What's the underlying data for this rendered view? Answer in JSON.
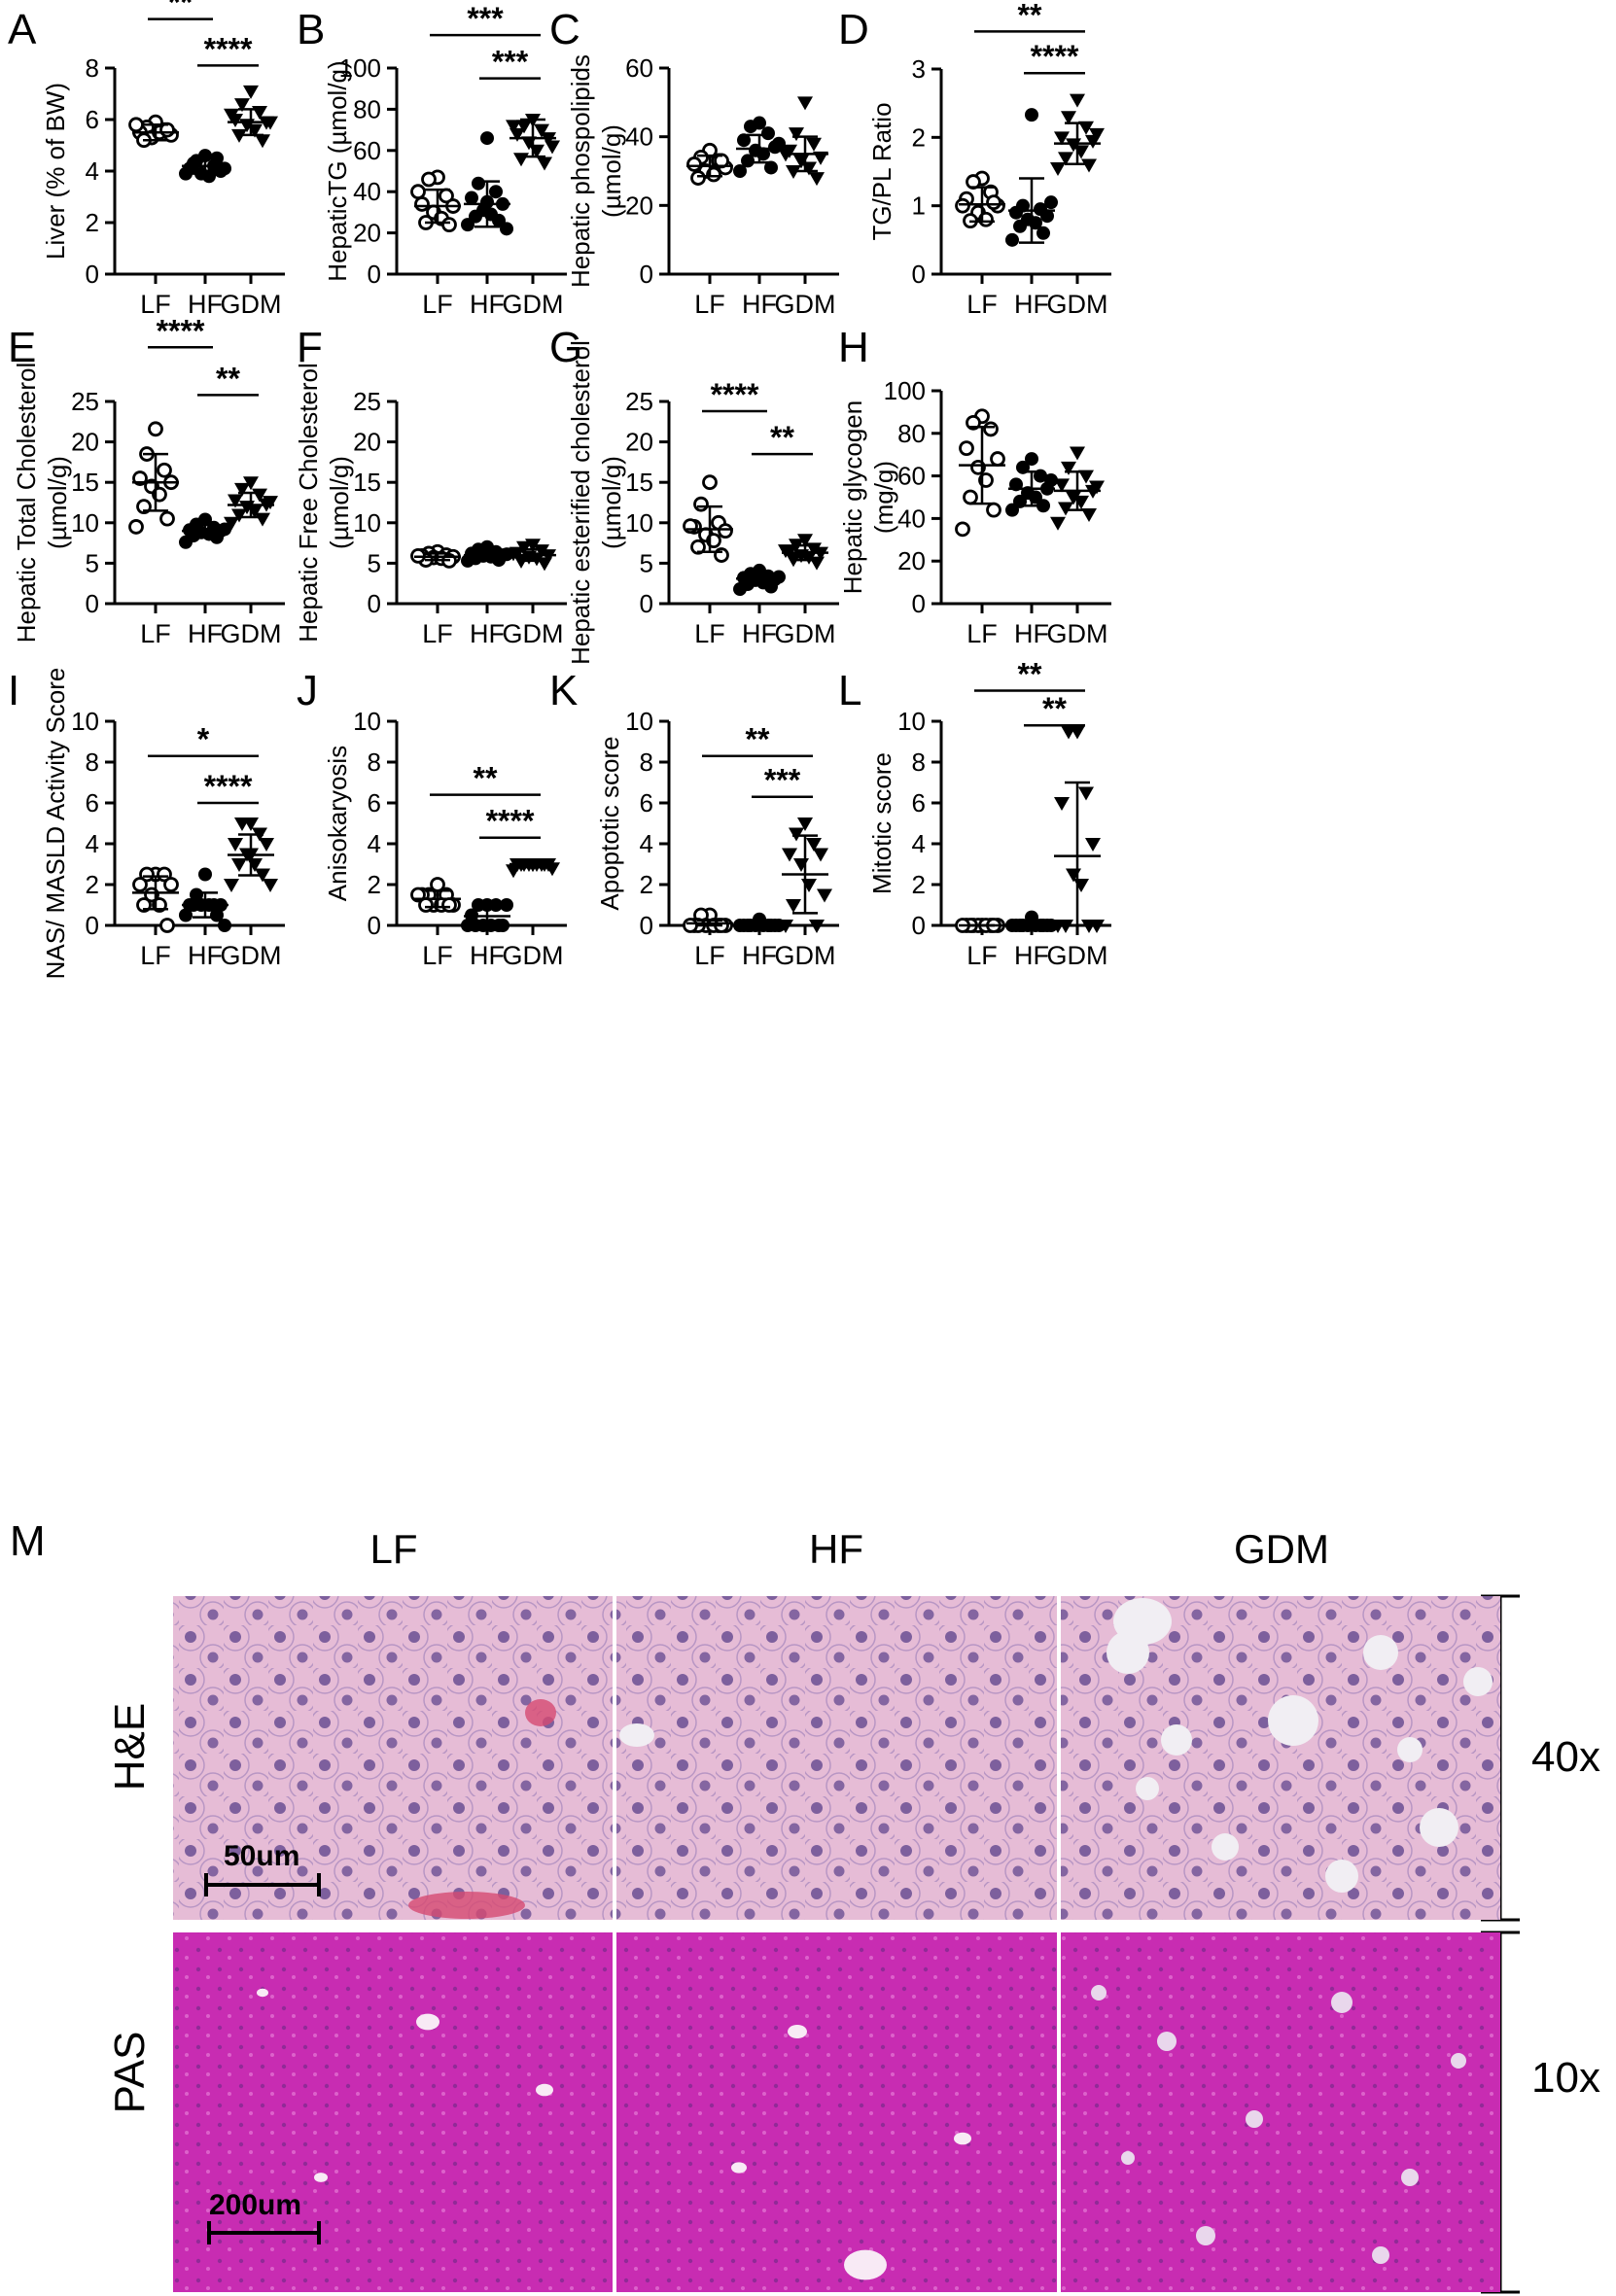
{
  "chart_data": [
    {
      "panel": "A",
      "type": "scatter",
      "ylabel": "Liver (% of BW)",
      "ylim": [
        0,
        8
      ],
      "yticks": [
        0,
        2,
        4,
        6,
        8
      ],
      "categories": [
        "LF",
        "HF",
        "GDM"
      ],
      "series": [
        {
          "group": "LF",
          "marker": "open-circle",
          "mean": 5.5,
          "sd": 0.3,
          "points": [
            5.9,
            5.7,
            5.6,
            5.5,
            5.4,
            5.3,
            5.5,
            5.2,
            5.6,
            5.8
          ]
        },
        {
          "group": "HF",
          "marker": "filled-circle",
          "mean": 4.2,
          "sd": 0.3,
          "points": [
            4.6,
            4.4,
            4.2,
            4.1,
            4.0,
            3.9,
            3.8,
            4.3,
            4.5,
            3.9,
            4.1
          ]
        },
        {
          "group": "GDM",
          "marker": "filled-triangle",
          "mean": 5.9,
          "sd": 0.5,
          "points": [
            7.1,
            6.6,
            6.3,
            6.0,
            5.9,
            5.8,
            5.6,
            5.4,
            5.2,
            6.2,
            5.9
          ]
        }
      ],
      "significance": [
        {
          "groups": [
            "LF",
            "HF"
          ],
          "label": "**",
          "y": 9.9
        },
        {
          "groups": [
            "HF",
            "GDM"
          ],
          "label": "****",
          "y": 8.1
        }
      ]
    },
    {
      "panel": "B",
      "type": "scatter",
      "ylabel": "HepaticTG (µmol/g)",
      "ylim": [
        0,
        100
      ],
      "yticks": [
        0,
        20,
        40,
        60,
        80,
        100
      ],
      "categories": [
        "LF",
        "HF",
        "GDM"
      ],
      "series": [
        {
          "group": "LF",
          "marker": "open-circle",
          "mean": 33,
          "sd": 8,
          "points": [
            47,
            46,
            38,
            34,
            33,
            30,
            27,
            25,
            24,
            40
          ]
        },
        {
          "group": "HF",
          "marker": "filled-circle",
          "mean": 34,
          "sd": 11,
          "points": [
            66,
            44,
            40,
            37,
            34,
            31,
            29,
            28,
            26,
            24,
            22,
            35
          ]
        },
        {
          "group": "GDM",
          "marker": "filled-triangle",
          "mean": 66,
          "sd": 9,
          "points": [
            75,
            72,
            70,
            68,
            66,
            64,
            60,
            56,
            54,
            72,
            62
          ]
        }
      ],
      "significance": [
        {
          "groups": [
            "LF",
            "GDM"
          ],
          "label": "***",
          "y": 116
        },
        {
          "groups": [
            "HF",
            "GDM"
          ],
          "label": "***",
          "y": 95
        }
      ]
    },
    {
      "panel": "C",
      "type": "scatter",
      "ylabel": "Hepatic phospolipids\n(µmol/g)",
      "ylim": [
        0,
        60
      ],
      "yticks": [
        0,
        20,
        40,
        60
      ],
      "categories": [
        "LF",
        "HF",
        "GDM"
      ],
      "series": [
        {
          "group": "LF",
          "marker": "open-circle",
          "mean": 31.5,
          "sd": 3,
          "points": [
            36,
            34,
            33,
            32,
            31,
            30,
            29,
            28,
            33
          ]
        },
        {
          "group": "HF",
          "marker": "filled-circle",
          "mean": 36.5,
          "sd": 4,
          "points": [
            44,
            43,
            41,
            39,
            37,
            36,
            35,
            33,
            31,
            30,
            38
          ]
        },
        {
          "group": "GDM",
          "marker": "filled-triangle",
          "mean": 35,
          "sd": 5,
          "points": [
            50,
            41,
            38,
            36,
            34,
            33,
            31,
            30,
            28,
            35
          ]
        }
      ],
      "significance": []
    },
    {
      "panel": "D",
      "type": "scatter",
      "ylabel": "TG/PL Ratio",
      "ylim": [
        0,
        3
      ],
      "yticks": [
        0,
        1,
        2,
        3
      ],
      "categories": [
        "LF",
        "HF",
        "GDM"
      ],
      "series": [
        {
          "group": "LF",
          "marker": "open-circle",
          "mean": 1.02,
          "sd": 0.25,
          "points": [
            1.4,
            1.35,
            1.2,
            1.1,
            1.0,
            0.9,
            0.8,
            0.78,
            1.05,
            1.0
          ]
        },
        {
          "group": "HF",
          "marker": "filled-circle",
          "mean": 0.93,
          "sd": 0.47,
          "points": [
            2.33,
            1.0,
            0.95,
            0.9,
            0.85,
            0.8,
            0.75,
            0.7,
            0.6,
            0.5,
            1.05
          ]
        },
        {
          "group": "GDM",
          "marker": "filled-triangle",
          "mean": 1.91,
          "sd": 0.3,
          "points": [
            2.55,
            2.3,
            2.15,
            2.0,
            1.95,
            1.9,
            1.8,
            1.7,
            1.6,
            1.55,
            2.05
          ]
        }
      ],
      "significance": [
        {
          "groups": [
            "LF",
            "GDM"
          ],
          "label": "**",
          "y": 3.55
        },
        {
          "groups": [
            "HF",
            "GDM"
          ],
          "label": "****",
          "y": 2.94
        }
      ]
    },
    {
      "panel": "E",
      "type": "scatter",
      "ylabel": "Hepatic Total Cholesterol\n(µmol/g)",
      "ylim": [
        0,
        25
      ],
      "yticks": [
        0,
        5,
        10,
        15,
        20,
        25
      ],
      "categories": [
        "LF",
        "HF",
        "GDM"
      ],
      "series": [
        {
          "group": "LF",
          "marker": "open-circle",
          "mean": 15,
          "sd": 3.5,
          "points": [
            21.6,
            18.5,
            16.5,
            15.5,
            15,
            14.5,
            13.5,
            12,
            10.5,
            9.5
          ]
        },
        {
          "group": "HF",
          "marker": "filled-circle",
          "mean": 9,
          "sd": 0.8,
          "points": [
            10.4,
            9.8,
            9.4,
            9.1,
            9,
            8.8,
            8.6,
            8.4,
            8.2,
            7.6,
            9.2
          ]
        },
        {
          "group": "GDM",
          "marker": "filled-triangle",
          "mean": 12.2,
          "sd": 1.5,
          "points": [
            15,
            14.2,
            13.5,
            12.8,
            12.3,
            12,
            11.5,
            11,
            10.5,
            10,
            12.6
          ]
        }
      ],
      "significance": [
        {
          "groups": [
            "LF",
            "HF"
          ],
          "label": "****",
          "y": 31.7
        },
        {
          "groups": [
            "HF",
            "GDM"
          ],
          "label": "**",
          "y": 25.8
        }
      ]
    },
    {
      "panel": "F",
      "type": "scatter",
      "ylabel": "Hepatic Free Cholesterol\n(µmol/g)",
      "ylim": [
        0,
        25
      ],
      "yticks": [
        0,
        5,
        10,
        15,
        20,
        25
      ],
      "categories": [
        "LF",
        "HF",
        "GDM"
      ],
      "series": [
        {
          "group": "LF",
          "marker": "open-circle",
          "mean": 5.8,
          "sd": 0.4,
          "points": [
            6.4,
            6.2,
            6,
            5.9,
            5.8,
            5.7,
            5.6,
            5.4,
            5.3,
            5.9
          ]
        },
        {
          "group": "HF",
          "marker": "filled-circle",
          "mean": 6,
          "sd": 0.5,
          "points": [
            7,
            6.7,
            6.4,
            6.2,
            6,
            5.9,
            5.8,
            5.6,
            5.4,
            5.3,
            6.1
          ]
        },
        {
          "group": "GDM",
          "marker": "filled-triangle",
          "mean": 6,
          "sd": 0.7,
          "points": [
            7.3,
            7,
            6.6,
            6.3,
            6,
            5.8,
            5.6,
            5.3,
            5,
            6.2
          ]
        }
      ],
      "significance": []
    },
    {
      "panel": "G",
      "type": "scatter",
      "ylabel": "Hepatic esterified cholesterol\n(µmol/g)",
      "ylim": [
        0,
        25
      ],
      "yticks": [
        0,
        5,
        10,
        15,
        20,
        25
      ],
      "categories": [
        "LF",
        "HF",
        "GDM"
      ],
      "series": [
        {
          "group": "LF",
          "marker": "open-circle",
          "mean": 9.2,
          "sd": 2.8,
          "points": [
            15,
            12.3,
            10,
            9.5,
            9,
            8.5,
            7.8,
            7,
            6,
            9.6
          ]
        },
        {
          "group": "HF",
          "marker": "filled-circle",
          "mean": 3.1,
          "sd": 0.8,
          "points": [
            4.1,
            3.7,
            3.4,
            3.2,
            3,
            2.9,
            2.6,
            2.4,
            2.1,
            1.8,
            3.3
          ]
        },
        {
          "group": "GDM",
          "marker": "filled-triangle",
          "mean": 6.3,
          "sd": 0.9,
          "points": [
            7.9,
            7.3,
            6.8,
            6.5,
            6.3,
            6,
            5.8,
            5.5,
            5.1,
            6.6
          ]
        }
      ],
      "significance": [
        {
          "groups": [
            "LF",
            "HF"
          ],
          "label": "****",
          "y": 23.8
        },
        {
          "groups": [
            "HF",
            "GDM"
          ],
          "label": "**",
          "y": 18.5
        }
      ]
    },
    {
      "panel": "H",
      "type": "scatter",
      "ylabel": "Hepatic glycogen\n(mg/g)",
      "ylim": [
        0,
        100
      ],
      "yticks": [
        0,
        20,
        40,
        60,
        80,
        100
      ],
      "categories": [
        "LF",
        "HF",
        "GDM"
      ],
      "series": [
        {
          "group": "LF",
          "marker": "open-circle",
          "mean": 65,
          "sd": 18,
          "points": [
            88,
            85,
            82,
            73,
            68,
            64,
            58,
            50,
            44,
            35
          ]
        },
        {
          "group": "HF",
          "marker": "filled-circle",
          "mean": 54,
          "sd": 8,
          "points": [
            68,
            64,
            60,
            56,
            54,
            52,
            50,
            48,
            46,
            44,
            58
          ]
        },
        {
          "group": "GDM",
          "marker": "filled-triangle",
          "mean": 53,
          "sd": 9,
          "points": [
            71,
            64,
            60,
            56,
            53,
            50,
            48,
            45,
            42,
            38,
            55
          ]
        }
      ],
      "significance": []
    },
    {
      "panel": "I",
      "type": "scatter",
      "ylabel": "NAS/ MASLD Activity Score",
      "ylim": [
        0,
        10
      ],
      "yticks": [
        0,
        2,
        4,
        6,
        8,
        10
      ],
      "categories": [
        "LF",
        "HF",
        "GDM"
      ],
      "series": [
        {
          "group": "LF",
          "marker": "open-circle",
          "mean": 1.6,
          "sd": 0.8,
          "points": [
            2.5,
            2.5,
            2.5,
            2,
            2,
            1.5,
            1,
            1,
            0
          ]
        },
        {
          "group": "HF",
          "marker": "filled-circle",
          "mean": 1.0,
          "sd": 0.6,
          "points": [
            2.5,
            1.5,
            1,
            1,
            1,
            1,
            1,
            1,
            0.5,
            0.5,
            0
          ]
        },
        {
          "group": "GDM",
          "marker": "filled-triangle",
          "mean": 3.45,
          "sd": 1.0,
          "points": [
            5,
            5,
            4.5,
            4,
            4,
            3.5,
            3,
            3,
            2.5,
            2,
            2,
            3.5
          ]
        }
      ],
      "significance": [
        {
          "groups": [
            "LF",
            "GDM"
          ],
          "label": "*",
          "y": 8.3
        },
        {
          "groups": [
            "HF",
            "GDM"
          ],
          "label": "****",
          "y": 6.0
        }
      ]
    },
    {
      "panel": "J",
      "type": "scatter",
      "ylabel": "Anisokaryosis",
      "ylim": [
        0,
        10
      ],
      "yticks": [
        0,
        2,
        4,
        6,
        8,
        10
      ],
      "categories": [
        "LF",
        "HF",
        "GDM"
      ],
      "series": [
        {
          "group": "LF",
          "marker": "open-circle",
          "mean": 1.3,
          "sd": 0.4,
          "points": [
            2,
            1.5,
            1.5,
            1.5,
            1,
            1,
            1,
            1,
            1,
            1.5
          ]
        },
        {
          "group": "HF",
          "marker": "filled-circle",
          "mean": 0.45,
          "sd": 0.5,
          "points": [
            1,
            1,
            1,
            0.5,
            0,
            0,
            0,
            0,
            0,
            0,
            1
          ]
        },
        {
          "group": "GDM",
          "marker": "filled-triangle",
          "mean": 3.0,
          "sd": 0.15,
          "points": [
            3,
            3,
            3,
            3,
            3,
            3,
            3,
            3,
            3,
            2.7,
            2.8,
            3
          ]
        }
      ],
      "significance": [
        {
          "groups": [
            "LF",
            "GDM"
          ],
          "label": "**",
          "y": 6.4
        },
        {
          "groups": [
            "HF",
            "GDM"
          ],
          "label": "****",
          "y": 4.3
        }
      ]
    },
    {
      "panel": "K",
      "type": "scatter",
      "ylabel": "Apoptotic score",
      "ylim": [
        0,
        10
      ],
      "yticks": [
        0,
        2,
        4,
        6,
        8,
        10
      ],
      "categories": [
        "LF",
        "HF",
        "GDM"
      ],
      "series": [
        {
          "group": "LF",
          "marker": "open-circle",
          "mean": 0.1,
          "sd": 0.15,
          "points": [
            0.5,
            0.5,
            0,
            0,
            0,
            0,
            0,
            0,
            0,
            0
          ]
        },
        {
          "group": "HF",
          "marker": "filled-circle",
          "mean": 0.05,
          "sd": 0.1,
          "points": [
            0.3,
            0,
            0,
            0,
            0,
            0,
            0,
            0,
            0,
            0,
            0
          ]
        },
        {
          "group": "GDM",
          "marker": "filled-triangle",
          "mean": 2.5,
          "sd": 1.9,
          "points": [
            5,
            4.5,
            4,
            3.5,
            3.5,
            3,
            2,
            1,
            0,
            0,
            1.5
          ]
        }
      ],
      "significance": [
        {
          "groups": [
            "LF",
            "GDM"
          ],
          "label": "**",
          "y": 8.3
        },
        {
          "groups": [
            "HF",
            "GDM"
          ],
          "label": "***",
          "y": 6.3
        }
      ]
    },
    {
      "panel": "L",
      "type": "scatter",
      "ylabel": "Mitotic score",
      "ylim": [
        0,
        10
      ],
      "yticks": [
        0,
        2,
        4,
        6,
        8,
        10
      ],
      "categories": [
        "LF",
        "HF",
        "GDM"
      ],
      "series": [
        {
          "group": "LF",
          "marker": "open-circle",
          "mean": 0,
          "sd": 0,
          "points": [
            0,
            0,
            0,
            0,
            0,
            0,
            0,
            0,
            0,
            0
          ]
        },
        {
          "group": "HF",
          "marker": "filled-circle",
          "mean": 0.05,
          "sd": 0.1,
          "points": [
            0.4,
            0,
            0,
            0,
            0,
            0,
            0,
            0,
            0,
            0,
            0
          ]
        },
        {
          "group": "GDM",
          "marker": "filled-triangle",
          "mean": 3.4,
          "sd": 3.6,
          "points": [
            9.5,
            9.5,
            6.5,
            6,
            4,
            2.5,
            2,
            0,
            0,
            0,
            0
          ]
        }
      ],
      "significance": [
        {
          "groups": [
            "LF",
            "GDM"
          ],
          "label": "**",
          "y": 11.5
        },
        {
          "groups": [
            "HF",
            "GDM"
          ],
          "label": "**",
          "y": 9.8
        }
      ]
    }
  ],
  "histology": {
    "panel_letter": "M",
    "columns": [
      "LF",
      "HF",
      "GDM"
    ],
    "rows": [
      {
        "stain": "H&E",
        "magnification": "40x",
        "scale_bar": "50um"
      },
      {
        "stain": "PAS",
        "magnification": "10x",
        "scale_bar": "200um"
      }
    ],
    "colors": {
      "he_background": "#e6bcd6",
      "he_nuclei": "#6b4f93",
      "pas_background": "#c82cb2"
    }
  }
}
